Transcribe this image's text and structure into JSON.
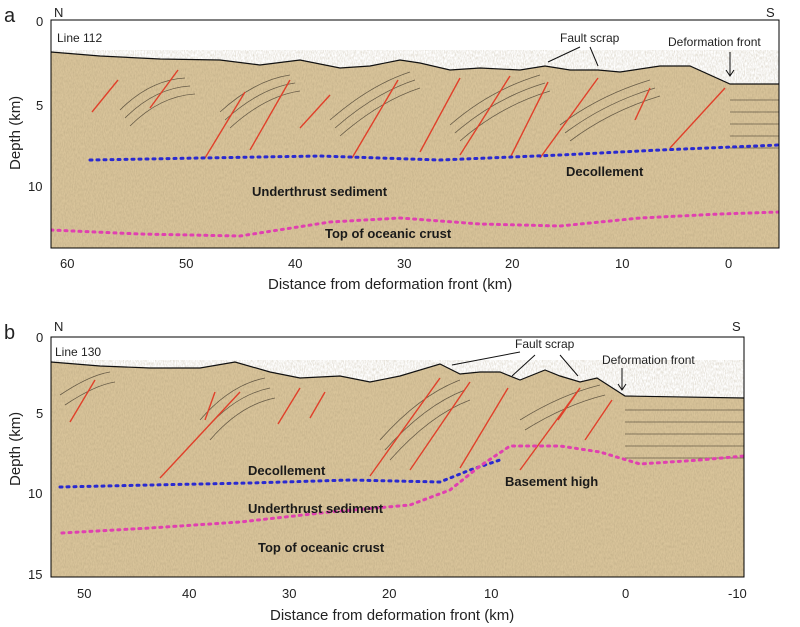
{
  "panels": [
    {
      "letter": "a",
      "line": "Line 112",
      "north": "N",
      "south": "S",
      "ylabel": "Depth (km)",
      "xlabel": "Distance from deformation front (km)",
      "xticks": [
        "60",
        "50",
        "40",
        "30",
        "20",
        "10",
        "0"
      ],
      "yticks": [
        "0",
        "5",
        "10"
      ],
      "labels": {
        "fault": "Fault scrap",
        "front": "Deformation front",
        "decollement": "Decollement",
        "underthrust": "Underthrust sediment",
        "oceanic": "Top of oceanic crust"
      }
    },
    {
      "letter": "b",
      "line": "Line 130",
      "north": "N",
      "south": "S",
      "ylabel": "Depth (km)",
      "xlabel": "Distance from deformation front (km)",
      "xticks": [
        "50",
        "40",
        "30",
        "20",
        "10",
        "0",
        "-10"
      ],
      "yticks": [
        "0",
        "5",
        "10",
        "15"
      ],
      "labels": {
        "fault": "Fault scrap",
        "front": "Deformation front",
        "decollement": "Decollement",
        "basement": "Basement high",
        "underthrust": "Underthrust sediment",
        "oceanic": "Top of oceanic crust"
      }
    }
  ],
  "colors": {
    "sediment": "#d9c49a",
    "seafloor": "#111111",
    "fault_lines": "#e0402a",
    "decollement": "#2a2ad0",
    "oceanic_crust": "#e040b0"
  }
}
